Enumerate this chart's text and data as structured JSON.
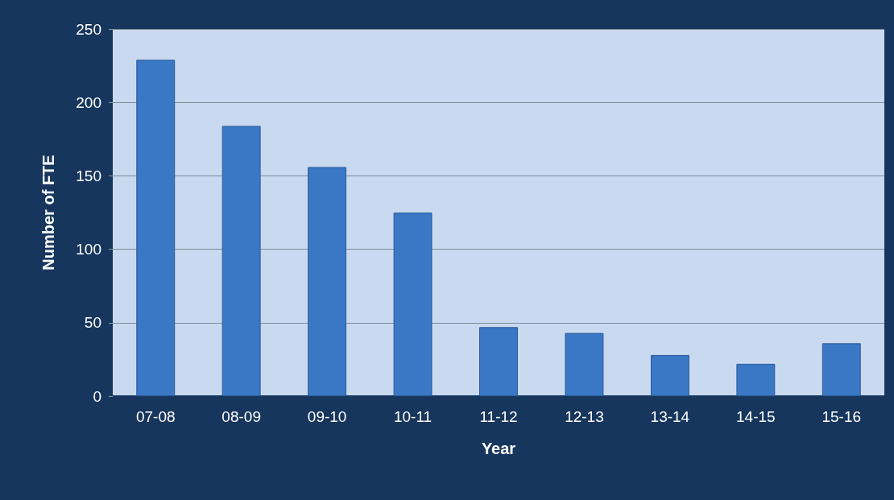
{
  "chart_data": {
    "type": "bar",
    "xlabel": "Year",
    "ylabel": "Number of FTE",
    "categories": [
      "07-08",
      "08-09",
      "09-10",
      "10-11",
      "11-12",
      "12-13",
      "13-14",
      "14-15",
      "15-16"
    ],
    "values": [
      229,
      184,
      156,
      125,
      47,
      43,
      28,
      22,
      36
    ],
    "color": "#3a78c6",
    "ylim": [
      0,
      250
    ],
    "yticks": [
      0,
      50,
      100,
      150,
      200,
      250
    ],
    "grid": "y"
  }
}
